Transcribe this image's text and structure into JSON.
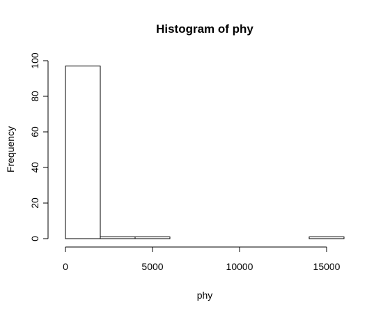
{
  "chart_data": {
    "type": "bar",
    "title": "Histogram of phy",
    "xlabel": "phy",
    "ylabel": "Frequency",
    "bins": [
      {
        "x0": 0,
        "x1": 2000,
        "count": 97
      },
      {
        "x0": 2000,
        "x1": 4000,
        "count": 1
      },
      {
        "x0": 4000,
        "x1": 6000,
        "count": 1
      },
      {
        "x0": 6000,
        "x1": 8000,
        "count": 0
      },
      {
        "x0": 8000,
        "x1": 10000,
        "count": 0
      },
      {
        "x0": 10000,
        "x1": 12000,
        "count": 0
      },
      {
        "x0": 12000,
        "x1": 14000,
        "count": 0
      },
      {
        "x0": 14000,
        "x1": 16000,
        "count": 1
      }
    ],
    "xlim": [
      0,
      16000
    ],
    "ylim": [
      0,
      100
    ],
    "x_ticks": [
      0,
      5000,
      10000,
      15000
    ],
    "x_tick_labels": [
      "0",
      "5000",
      "10000",
      "15000"
    ],
    "y_ticks": [
      0,
      20,
      40,
      60,
      80,
      100
    ],
    "y_tick_labels": [
      "0",
      "20",
      "40",
      "60",
      "80",
      "100"
    ],
    "grid": false,
    "bar_fill": "#ffffff",
    "bar_stroke": "#000000"
  }
}
